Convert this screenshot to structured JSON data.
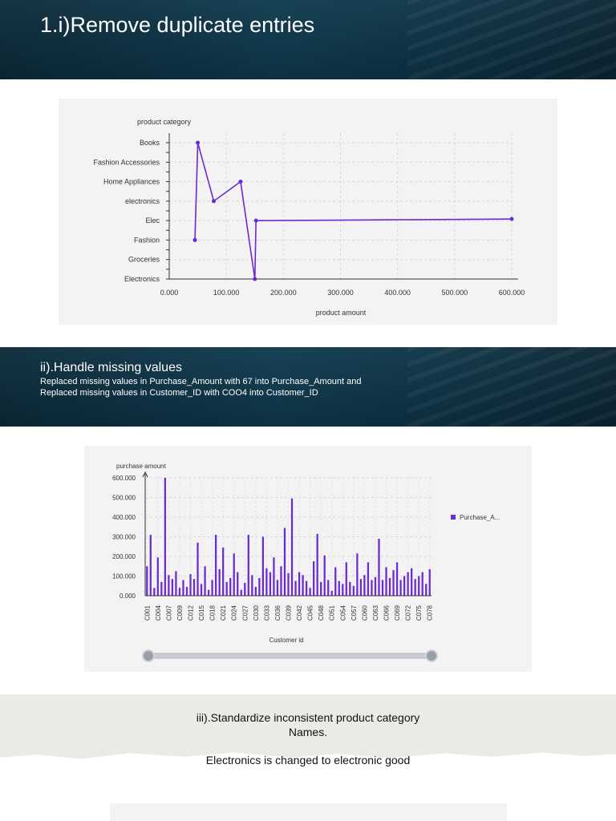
{
  "slide1": {
    "title": "1.i)Remove duplicate entries"
  },
  "slide2": {
    "title": "ii).Handle missing values",
    "lines": [
      "Replaced missing values in Purchase_Amount with 67 into Purchase_Amount and",
      "Replaced missing values in Customer_ID with COO4 into Customer_ID"
    ]
  },
  "slide3": {
    "lines": [
      "iii).Standardize inconsistent product category",
      "Names."
    ],
    "note": "Electronics is changed to electronic good"
  },
  "colors": {
    "accent": "#6a2bd4",
    "banner": "#0e3a4f",
    "panel": "#f3f3f3"
  },
  "chart_data": [
    {
      "type": "line",
      "title": "",
      "xlabel": "product amount",
      "ylabel": "product category",
      "categories": [
        "Books",
        "Fashion Accessories",
        "Home Appliances",
        "electronics",
        "Elec",
        "Fashion",
        "Groceries",
        "Electronics"
      ],
      "xlim": [
        0,
        600
      ],
      "x_ticks": [
        "0.000",
        "100.000",
        "200.000",
        "300.000",
        "400.000",
        "500.000",
        "600.000"
      ],
      "grid": true,
      "series": [
        {
          "points": [
            {
              "x": 45,
              "y": "Fashion"
            },
            {
              "x": 50,
              "y": "Books"
            },
            {
              "x": 78,
              "y": "electronics"
            },
            {
              "x": 125,
              "y": "Home Appliances"
            },
            {
              "x": 150,
              "y": "Electronics"
            },
            {
              "x": 152,
              "y": "Elec"
            },
            {
              "x": 200,
              "y": "Elec",
              "offset": 0.2
            },
            {
              "x": 300,
              "y": "Elec",
              "offset": 0.6
            },
            {
              "x": 400,
              "y": "Elec",
              "offset": 1.05
            },
            {
              "x": 500,
              "y": "Elec",
              "offset": 1.5
            },
            {
              "x": 600,
              "y": "Elec",
              "offset": 2.0
            }
          ]
        }
      ]
    },
    {
      "type": "bar",
      "title": "",
      "xlabel": "Customer id",
      "ylabel": "purchase amount",
      "ylim": [
        0,
        600
      ],
      "y_ticks": [
        "0.000",
        "100.000",
        "200.000",
        "300.000",
        "400.000",
        "500.000",
        "600.000"
      ],
      "legend": "right",
      "grid": true,
      "x_tick_labels": [
        "C001",
        "C004",
        "C007",
        "C009",
        "C012",
        "C015",
        "C018",
        "C021",
        "C024",
        "C027",
        "C030",
        "C033",
        "C036",
        "C039",
        "C042",
        "C045",
        "C048",
        "C051",
        "C054",
        "C057",
        "C060",
        "C063",
        "C066",
        "C069",
        "C072",
        "C075",
        "C078"
      ],
      "series": [
        {
          "name": "Purchase_A...",
          "values": [
            150,
            310,
            40,
            195,
            70,
            600,
            105,
            85,
            125,
            40,
            80,
            45,
            110,
            85,
            270,
            60,
            150,
            30,
            80,
            310,
            135,
            245,
            70,
            90,
            215,
            120,
            30,
            65,
            310,
            105,
            45,
            90,
            300,
            140,
            120,
            195,
            80,
            150,
            345,
            115,
            495,
            75,
            120,
            105,
            75,
            40,
            175,
            315,
            70,
            205,
            80,
            25,
            145,
            75,
            60,
            170,
            70,
            50,
            215,
            85,
            105,
            170,
            80,
            95,
            290,
            80,
            145,
            90,
            130,
            170,
            80,
            100,
            120,
            140,
            85,
            100,
            120,
            60,
            135
          ]
        }
      ]
    }
  ]
}
